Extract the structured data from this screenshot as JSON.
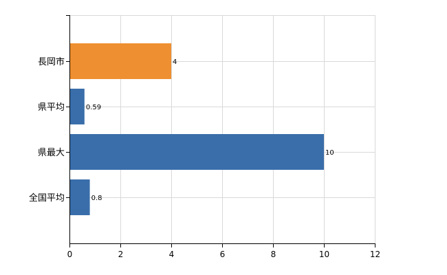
{
  "chart_data": {
    "type": "bar",
    "orientation": "horizontal",
    "categories": [
      "長岡市",
      "県平均",
      "県最大",
      "全国平均"
    ],
    "values": [
      4,
      0.59,
      10,
      0.8
    ],
    "value_labels": [
      "4",
      "0.59",
      "10",
      "0.8"
    ],
    "colors": [
      "#EE8F31",
      "#3A6EAA",
      "#3A6EAA",
      "#3A6EAA"
    ],
    "title": "",
    "xlabel": "",
    "ylabel": "",
    "xlim": [
      0,
      12
    ],
    "xticks": [
      0,
      2,
      4,
      6,
      8,
      10,
      12
    ],
    "xtick_labels": [
      "0",
      "2",
      "4",
      "6",
      "8",
      "10",
      "12"
    ],
    "grid": true,
    "legend": "none"
  }
}
